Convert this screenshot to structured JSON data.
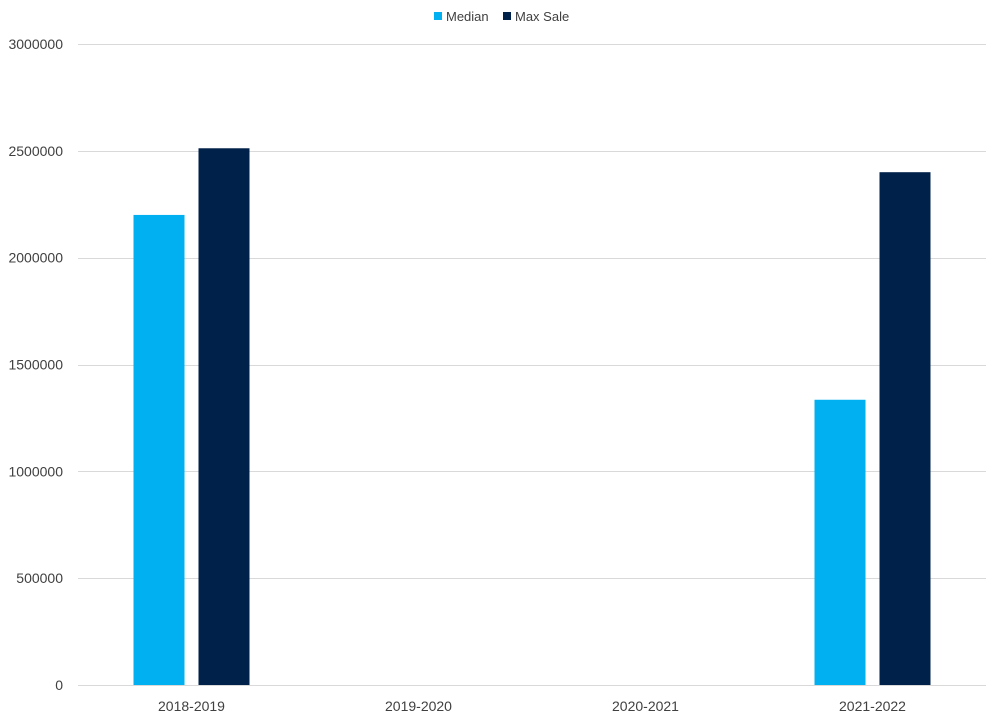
{
  "chart_data": {
    "type": "bar",
    "title": "",
    "xlabel": "",
    "ylabel": "",
    "categories": [
      "2018-2019",
      "2019-2020",
      "2020-2021",
      "2021-2022"
    ],
    "series": [
      {
        "name": "Median",
        "values": [
          2200000,
          0,
          0,
          1335000
        ],
        "color": "#00B0F0"
      },
      {
        "name": "Max Sale",
        "values": [
          2512000,
          0,
          0,
          2400000
        ],
        "color": "#002149"
      }
    ],
    "ylim": [
      0,
      3000000
    ],
    "yticks": [
      0,
      500000,
      1000000,
      1500000,
      2000000,
      2500000,
      3000000
    ],
    "ytick_labels": [
      "0",
      "500000",
      "1000000",
      "1500000",
      "2000000",
      "2500000",
      "3000000"
    ],
    "grid": true,
    "legend_position": "top-center",
    "gridline_color": "#D9D9D9",
    "text_color": "#404040"
  }
}
